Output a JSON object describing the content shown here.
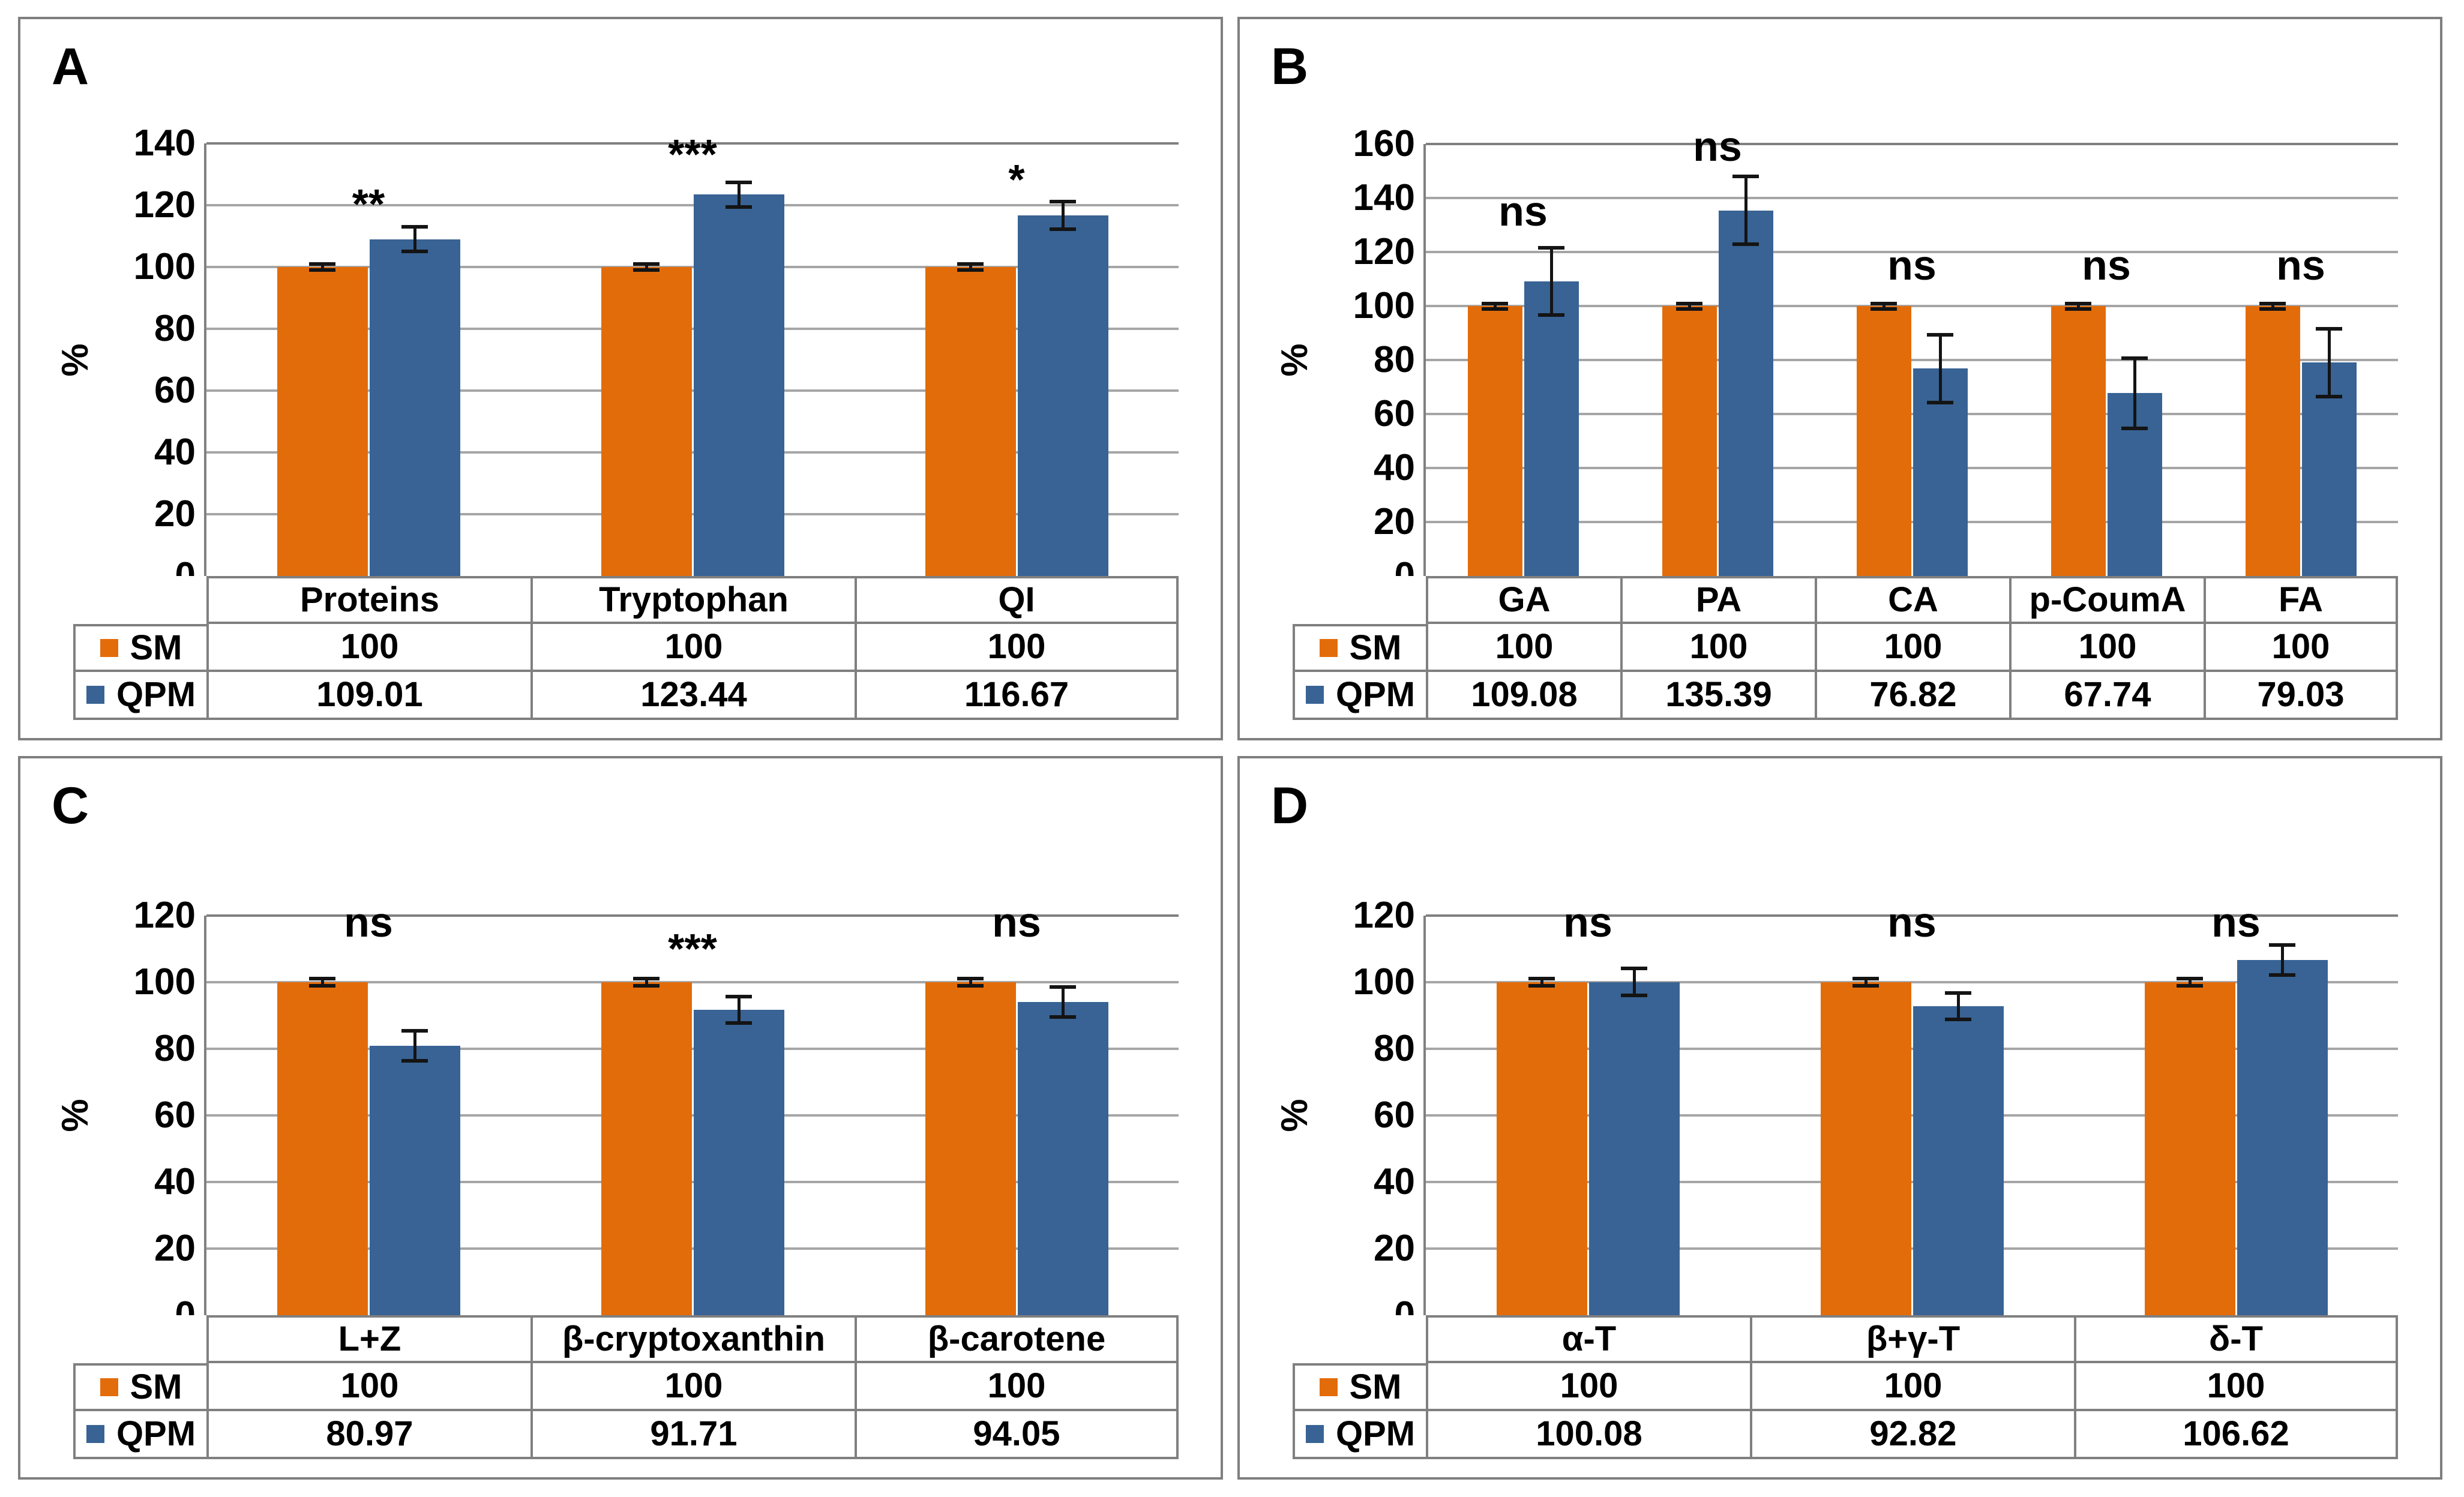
{
  "figure": {
    "panel_letters": [
      "A",
      "B",
      "C",
      "D"
    ],
    "colors": {
      "sm_bar": "#E36C0A",
      "qpm_bar": "#386394",
      "gridline": "#A6A6A6",
      "frame": "#7F7F7F",
      "table_line": "#808080",
      "error_bar": "#141414",
      "text": "#000000"
    }
  },
  "chart_data": [
    {
      "panel": "A",
      "type": "bar",
      "title": "",
      "xlabel": "",
      "ylabel": "%",
      "ylim": [
        0,
        140
      ],
      "ystep": 20,
      "grid": true,
      "legend_position": "table-left",
      "categories": [
        "Proteins",
        "Tryptophan",
        "QI"
      ],
      "series": [
        {
          "name": "SM",
          "color": "#E36C0A",
          "values": [
            100,
            100,
            100
          ],
          "errors": [
            1,
            1,
            1
          ],
          "display": [
            "100",
            "100",
            "100"
          ]
        },
        {
          "name": "QPM",
          "color": "#386394",
          "values": [
            109.01,
            123.44,
            116.67
          ],
          "errors": [
            4,
            4,
            4.5
          ],
          "display": [
            "109.01",
            "123.44",
            "116.67"
          ]
        }
      ],
      "significance": [
        {
          "label": "**",
          "level": 115
        },
        {
          "label": "***",
          "level": 131
        },
        {
          "label": "*",
          "level": 123
        }
      ]
    },
    {
      "panel": "B",
      "type": "bar",
      "title": "",
      "xlabel": "",
      "ylabel": "%",
      "ylim": [
        0,
        160
      ],
      "ystep": 20,
      "grid": true,
      "legend_position": "table-left",
      "categories": [
        "GA",
        "PA",
        "CA",
        "p-CoumA",
        "FA"
      ],
      "series": [
        {
          "name": "SM",
          "color": "#E36C0A",
          "values": [
            100,
            100,
            100,
            100,
            100
          ],
          "errors": [
            1,
            1,
            1,
            1,
            1
          ],
          "display": [
            "100",
            "100",
            "100",
            "100",
            "100"
          ]
        },
        {
          "name": "QPM",
          "color": "#386394",
          "values": [
            109.08,
            135.39,
            76.82,
            67.74,
            79.03
          ],
          "errors": [
            12.5,
            12.5,
            12.5,
            13,
            12.5
          ],
          "display": [
            "109.08",
            "135.39",
            "76.82",
            "67.74",
            "79.03"
          ]
        }
      ],
      "significance": [
        {
          "label": "ns",
          "level": 129
        },
        {
          "label": "ns",
          "level": 153
        },
        {
          "label": "ns",
          "level": 109
        },
        {
          "label": "ns",
          "level": 109
        },
        {
          "label": "ns",
          "level": 109
        }
      ]
    },
    {
      "panel": "C",
      "type": "bar",
      "title": "",
      "xlabel": "",
      "ylabel": "%",
      "ylim": [
        0,
        120
      ],
      "ystep": 20,
      "grid": true,
      "legend_position": "table-left",
      "categories": [
        "L+Z",
        "β-cryptoxanthin",
        "β-carotene"
      ],
      "series": [
        {
          "name": "SM",
          "color": "#E36C0A",
          "values": [
            100,
            100,
            100
          ],
          "errors": [
            1,
            1,
            1
          ],
          "display": [
            "100",
            "100",
            "100"
          ]
        },
        {
          "name": "QPM",
          "color": "#386394",
          "values": [
            80.97,
            91.71,
            94.05
          ],
          "errors": [
            4.5,
            4,
            4.5
          ],
          "display": [
            "80.97",
            "91.71",
            "94.05"
          ]
        }
      ],
      "significance": [
        {
          "label": "ns",
          "level": 113
        },
        {
          "label": "***",
          "level": 105
        },
        {
          "label": "ns",
          "level": 113
        }
      ]
    },
    {
      "panel": "D",
      "type": "bar",
      "title": "",
      "xlabel": "",
      "ylabel": "%",
      "ylim": [
        0,
        120
      ],
      "ystep": 20,
      "grid": true,
      "legend_position": "table-left",
      "categories": [
        "α-T",
        "β+γ-T",
        "δ-T"
      ],
      "series": [
        {
          "name": "SM",
          "color": "#E36C0A",
          "values": [
            100,
            100,
            100
          ],
          "errors": [
            1,
            1,
            1
          ],
          "display": [
            "100",
            "100",
            "100"
          ]
        },
        {
          "name": "QPM",
          "color": "#386394",
          "values": [
            100.08,
            92.82,
            106.62
          ],
          "errors": [
            4,
            4,
            4.5
          ],
          "display": [
            "100.08",
            "92.82",
            "106.62"
          ]
        }
      ],
      "significance": [
        {
          "label": "ns",
          "level": 113
        },
        {
          "label": "ns",
          "level": 113
        },
        {
          "label": "ns",
          "level": 113
        }
      ]
    }
  ]
}
